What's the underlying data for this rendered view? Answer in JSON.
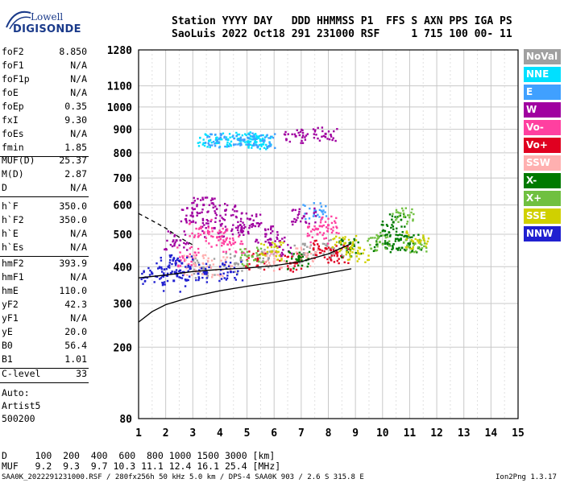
{
  "logo": {
    "line1": "Lowell",
    "line2": "DIGISONDE"
  },
  "header": {
    "line1": "Station YYYY DAY   DDD HHMMSS P1  FFS S AXN PPS IGA PS",
    "line2": "SaoLuis 2022 Oct18 291 231000 RSF     1 715 100 00- 11"
  },
  "params_group1": [
    {
      "k": "foF2",
      "v": "8.850"
    },
    {
      "k": "foF1",
      "v": "N/A"
    },
    {
      "k": "foF1p",
      "v": "N/A"
    },
    {
      "k": "foE",
      "v": "N/A"
    },
    {
      "k": "foEp",
      "v": "0.35"
    },
    {
      "k": "fxI",
      "v": "9.30"
    },
    {
      "k": "foEs",
      "v": "N/A"
    },
    {
      "k": "fmin",
      "v": "1.85"
    }
  ],
  "params_group2": [
    {
      "k": "MUF(D)",
      "v": "25.37"
    },
    {
      "k": "M(D)",
      "v": "2.87"
    },
    {
      "k": "D",
      "v": "N/A"
    }
  ],
  "params_group3": [
    {
      "k": "h`F",
      "v": "350.0"
    },
    {
      "k": "h`F2",
      "v": "350.0"
    },
    {
      "k": "h`E",
      "v": "N/A"
    },
    {
      "k": "h`Es",
      "v": "N/A"
    }
  ],
  "params_group4": [
    {
      "k": "hmF2",
      "v": "393.9"
    },
    {
      "k": "hmF1",
      "v": "N/A"
    },
    {
      "k": "hmE",
      "v": "110.0"
    },
    {
      "k": "yF2",
      "v": "42.3"
    },
    {
      "k": "yF1",
      "v": "N/A"
    },
    {
      "k": "yE",
      "v": "20.0"
    },
    {
      "k": "B0",
      "v": "56.4"
    },
    {
      "k": "B1",
      "v": "1.01"
    }
  ],
  "params_group5": [
    {
      "k": "C-level",
      "v": "33"
    }
  ],
  "autoscaling": {
    "line1": "Auto:",
    "line2": "Artist5",
    "line3": "500200"
  },
  "legend": [
    {
      "name": "NoVal",
      "color": "#a0a0a0"
    },
    {
      "name": "NNE",
      "color": "#00e0ff"
    },
    {
      "name": "E",
      "color": "#40a0ff"
    },
    {
      "name": "W",
      "color": "#a000a0"
    },
    {
      "name": "Vo-",
      "color": "#ff40a0"
    },
    {
      "name": "Vo+",
      "color": "#e00020"
    },
    {
      "name": "SSW",
      "color": "#ffb0b0"
    },
    {
      "name": "X-",
      "color": "#007a00"
    },
    {
      "name": "X+",
      "color": "#70c040"
    },
    {
      "name": "SSE",
      "color": "#d0d000"
    },
    {
      "name": "NNW",
      "color": "#2020d0"
    }
  ],
  "footer": {
    "row1": "D     100  200  400  600  800 1000 1500 3000 [km]",
    "row2": "MUF   9.2  9.3  9.7 10.3 11.1 12.4 16.1 25.4 [MHz]",
    "left": "SAA0K_2022291231000.RSF / 280fx256h 50 kHz 5.0 km / DPS-4 SAA0K 903 / 2.6 S 315.8 E",
    "right": "Ion2Png 1.3.17"
  },
  "chart_data": {
    "type": "scatter",
    "title": "",
    "xlabel": "",
    "ylabel": "",
    "x_ticks": [
      1,
      2,
      3,
      4,
      5,
      6,
      7,
      8,
      9,
      10,
      11,
      12,
      13,
      14,
      15
    ],
    "y_ticks": [
      80,
      200,
      300,
      400,
      500,
      600,
      700,
      800,
      900,
      1000,
      1100,
      1280
    ],
    "xlim": [
      1,
      15
    ],
    "ylim": [
      80,
      1280
    ],
    "y_scale": "sqrt",
    "grid": true,
    "series": [
      {
        "name": "NoVal",
        "color": "#a0a0a0",
        "points": [
          [
            3.4,
            395
          ],
          [
            4.6,
            410
          ],
          [
            5.8,
            425
          ],
          [
            7.1,
            440
          ],
          [
            8.2,
            455
          ]
        ]
      },
      {
        "name": "NNE",
        "color": "#00e0ff",
        "points": [
          [
            3.6,
            850
          ],
          [
            4.3,
            855
          ],
          [
            5.1,
            860
          ],
          [
            5.5,
            850
          ],
          [
            5.3,
            845
          ]
        ]
      },
      {
        "name": "E",
        "color": "#40a0ff",
        "points": [
          [
            4.9,
            855
          ],
          [
            5.6,
            850
          ],
          [
            3.9,
            852
          ],
          [
            7.5,
            580
          ]
        ]
      },
      {
        "name": "W",
        "color": "#a000a0",
        "points": [
          [
            3.0,
            560
          ],
          [
            3.4,
            600
          ],
          [
            3.8,
            520
          ],
          [
            4.2,
            580
          ],
          [
            5.1,
            550
          ],
          [
            5.7,
            500
          ],
          [
            6.8,
            870
          ],
          [
            7.1,
            560
          ],
          [
            7.9,
            880
          ],
          [
            2.4,
            480
          ],
          [
            4.8,
            520
          ],
          [
            6.2,
            460
          ]
        ]
      },
      {
        "name": "Vo-",
        "color": "#ff40a0",
        "points": [
          [
            3.3,
            520
          ],
          [
            3.9,
            490
          ],
          [
            4.5,
            470
          ],
          [
            7.6,
            500
          ],
          [
            8.0,
            530
          ],
          [
            2.8,
            430
          ]
        ]
      },
      {
        "name": "Vo+",
        "color": "#e00020",
        "points": [
          [
            5.4,
            420
          ],
          [
            7.9,
            455
          ],
          [
            8.3,
            440
          ],
          [
            6.6,
            410
          ]
        ]
      },
      {
        "name": "SSW",
        "color": "#ffb0b0",
        "points": [
          [
            3.1,
            405
          ],
          [
            4.0,
            400
          ],
          [
            6.0,
            415
          ],
          [
            7.2,
            430
          ]
        ]
      },
      {
        "name": "X-",
        "color": "#007a00",
        "points": [
          [
            10.1,
            470
          ],
          [
            10.6,
            480
          ],
          [
            11.0,
            470
          ],
          [
            6.9,
            420
          ],
          [
            8.8,
            455
          ],
          [
            10.4,
            540
          ]
        ]
      },
      {
        "name": "X+",
        "color": "#70c040",
        "points": [
          [
            5.2,
            430
          ],
          [
            9.9,
            475
          ],
          [
            11.2,
            470
          ],
          [
            10.8,
            560
          ]
        ]
      },
      {
        "name": "SSE",
        "color": "#d0d000",
        "points": [
          [
            5.9,
            445
          ],
          [
            8.6,
            470
          ],
          [
            9.1,
            440
          ],
          [
            11.3,
            480
          ]
        ]
      },
      {
        "name": "NNW",
        "color": "#2020d0",
        "points": [
          [
            1.5,
            380
          ],
          [
            2.1,
            400
          ],
          [
            2.6,
            410
          ],
          [
            3.2,
            380
          ],
          [
            4.4,
            385
          ],
          [
            2.3,
            360
          ]
        ]
      }
    ],
    "profile_solid": [
      [
        1.0,
        255
      ],
      [
        1.5,
        280
      ],
      [
        2.0,
        297
      ],
      [
        3.0,
        318
      ],
      [
        4.0,
        333
      ],
      [
        5.0,
        345
      ],
      [
        6.0,
        356
      ],
      [
        7.0,
        368
      ],
      [
        8.0,
        382
      ],
      [
        8.85,
        394
      ]
    ],
    "trace_solid": [
      [
        1.0,
        368
      ],
      [
        2.0,
        376
      ],
      [
        3.0,
        386
      ],
      [
        4.0,
        392
      ],
      [
        5.0,
        396
      ],
      [
        6.0,
        403
      ],
      [
        7.0,
        415
      ],
      [
        8.0,
        438
      ],
      [
        8.85,
        470
      ]
    ],
    "trace_dashed": [
      [
        1.0,
        570
      ],
      [
        1.3,
        555
      ],
      [
        1.6,
        540
      ],
      [
        2.0,
        520
      ],
      [
        2.5,
        490
      ],
      [
        3.0,
        466
      ]
    ]
  }
}
